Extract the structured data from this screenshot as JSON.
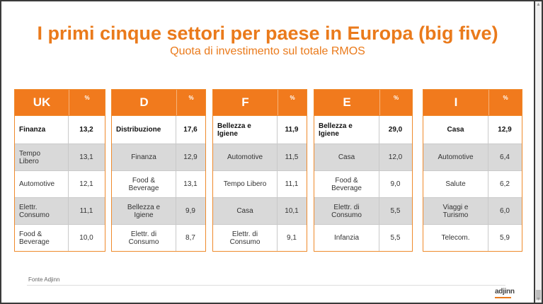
{
  "title": "I primi cinque settori per paese in Europa (big five)",
  "subtitle": "Quota di investimento sul totale RMOS",
  "source": "Fonte Adjinn",
  "footnote": "",
  "logo": "adjinn",
  "tables": [
    {
      "country": "UK",
      "pct_label": "%",
      "rows": [
        {
          "name": "Finanza",
          "value": "13,2"
        },
        {
          "name": "Tempo\nLibero",
          "value": "13,1"
        },
        {
          "name": "Automotive",
          "value": "12,1"
        },
        {
          "name": "Elettr.\nConsumo",
          "value": "11,1"
        },
        {
          "name": "Food &\nBeverage",
          "value": "10,0"
        }
      ]
    },
    {
      "country": "D",
      "pct_label": "%",
      "rows": [
        {
          "name": "Distribuzione",
          "value": "17,6"
        },
        {
          "name": "Finanza",
          "value": "12,9"
        },
        {
          "name": "Food &\nBeverage",
          "value": "13,1"
        },
        {
          "name": "Bellezza e\nIgiene",
          "value": "9,9"
        },
        {
          "name": "Elettr. di\nConsumo",
          "value": "8,7"
        }
      ]
    },
    {
      "country": "F",
      "pct_label": "%",
      "rows": [
        {
          "name": "Bellezza e\nIgiene",
          "value": "11,9"
        },
        {
          "name": "Automotive",
          "value": "11,5"
        },
        {
          "name": "Tempo Libero",
          "value": "11,1"
        },
        {
          "name": "Casa",
          "value": "10,1"
        },
        {
          "name": "Elettr. di\nConsumo",
          "value": "9,1"
        }
      ]
    },
    {
      "country": "E",
      "pct_label": "%",
      "rows": [
        {
          "name": "Bellezza e\nIgiene",
          "value": "29,0"
        },
        {
          "name": "Casa",
          "value": "12,0"
        },
        {
          "name": "Food &\nBeverage",
          "value": "9,0"
        },
        {
          "name": "Elettr. di\nConsumo",
          "value": "5,5"
        },
        {
          "name": "Infanzia",
          "value": "5,5"
        }
      ]
    },
    {
      "country": "I",
      "pct_label": "%",
      "rows": [
        {
          "name": "Casa",
          "value": "12,9"
        },
        {
          "name": "Automotive",
          "value": "6,4"
        },
        {
          "name": "Salute",
          "value": "6,2"
        },
        {
          "name": "Viaggi e\nTurismo",
          "value": "6,0"
        },
        {
          "name": "Telecom.",
          "value": "5,9"
        }
      ]
    }
  ],
  "colors": {
    "accent": "#ea7a1b",
    "header_bg": "#f17a1d",
    "row_alt": "#d9d9d9"
  }
}
